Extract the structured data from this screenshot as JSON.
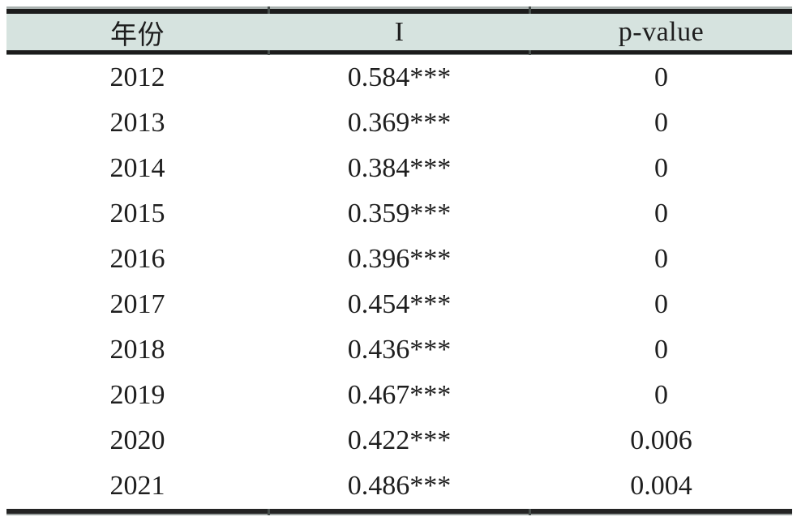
{
  "table": {
    "columns": [
      {
        "key": "year",
        "label": "年份"
      },
      {
        "key": "moran_i",
        "label": "I"
      },
      {
        "key": "p_value",
        "label": "p-value"
      }
    ],
    "rows": [
      {
        "year": "2012",
        "i": "0.584***",
        "p": "0"
      },
      {
        "year": "2013",
        "i": "0.369***",
        "p": "0"
      },
      {
        "year": "2014",
        "i": "0.384***",
        "p": "0"
      },
      {
        "year": "2015",
        "i": "0.359***",
        "p": "0"
      },
      {
        "year": "2016",
        "i": "0.396***",
        "p": "0"
      },
      {
        "year": "2017",
        "i": "0.454***",
        "p": "0"
      },
      {
        "year": "2018",
        "i": "0.436***",
        "p": "0"
      },
      {
        "year": "2019",
        "i": "0.467***",
        "p": "0"
      },
      {
        "year": "2020",
        "i": "0.422***",
        "p": "0.006"
      },
      {
        "year": "2021",
        "i": "0.486***",
        "p": "0.004"
      }
    ],
    "style": {
      "header_background": "#d6e3df",
      "rule_color": "#1c1c1c",
      "thin_line_color": "#9aa19f",
      "text_color": "#1e1e1e"
    }
  }
}
